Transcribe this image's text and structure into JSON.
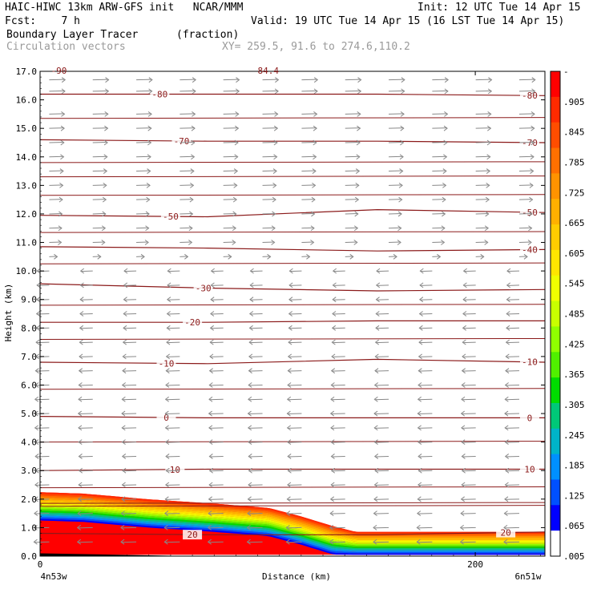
{
  "header": {
    "model_line": "HAIC-HIWC 13km ARW-GFS init   NCAR/MMM",
    "init": "Init: 12 UTC Tue 14 Apr 15",
    "fcst": "Fcst:    7 h",
    "valid": "Valid: 19 UTC Tue 14 Apr 15 (16 LST Tue 14 Apr 15)",
    "field1": "Boundary Layer Tracer",
    "field1_units": "(fraction)",
    "field2": "Circulation vectors",
    "xy": "XY= 259.5, 91.6 to 274.6,110.2"
  },
  "chart_data": {
    "type": "heatmap",
    "title": "Boundary Layer Tracer (fraction)",
    "subtitle": "Circulation vectors",
    "xlabel": "Distance (km)",
    "ylabel": "Height (km)",
    "xlim": [
      0,
      232
    ],
    "ylim": [
      0,
      17
    ],
    "x_ticks": [
      {
        "value": 0,
        "label": "0"
      },
      {
        "value": 200,
        "label": "200"
      }
    ],
    "x_end_labels": {
      "left": "4n53w",
      "right": "6n51w"
    },
    "y_ticks": [
      "0.0",
      "1.0",
      "2.0",
      "3.0",
      "4.0",
      "5.0",
      "6.0",
      "7.0",
      "8.0",
      "9.0",
      "10.0",
      "11.0",
      "12.0",
      "13.0",
      "14.0",
      "15.0",
      "16.0",
      "17.0"
    ],
    "terrain_height_km": [
      {
        "x": 0,
        "y": 2.3
      },
      {
        "x": 20,
        "y": 2.25
      },
      {
        "x": 50,
        "y": 2.05
      },
      {
        "x": 80,
        "y": 1.9
      },
      {
        "x": 105,
        "y": 1.75
      },
      {
        "x": 120,
        "y": 1.45
      },
      {
        "x": 135,
        "y": 1.1
      },
      {
        "x": 145,
        "y": 0.9
      },
      {
        "x": 160,
        "y": 0.9
      },
      {
        "x": 200,
        "y": 0.9
      },
      {
        "x": 232,
        "y": 0.9
      }
    ],
    "tracer_gradient_depth_km": 0.25,
    "colorbar": {
      "labels": [
        "-",
        ".905",
        ".845",
        ".785",
        ".725",
        ".665",
        ".605",
        ".545",
        ".485",
        ".425",
        ".365",
        ".305",
        ".245",
        ".185",
        ".125",
        ".065",
        ".005"
      ],
      "colors": [
        "#ff0000",
        "#ff2a00",
        "#ff4d00",
        "#ff7000",
        "#ff9300",
        "#ffb000",
        "#ffcc00",
        "#ffe600",
        "#f0ff00",
        "#c8ff00",
        "#90ff00",
        "#50f000",
        "#00dd00",
        "#00c878",
        "#00b4c8",
        "#0090ff",
        "#0050ff",
        "#0000ff",
        "#ffffff"
      ]
    },
    "contours": [
      {
        "label": "-80",
        "y": [
          16.2,
          16.2,
          16.2,
          16.15
        ],
        "label_at": [
          55,
          225
        ]
      },
      {
        "label": "-70",
        "y": [
          14.6,
          14.55,
          14.55,
          14.5
        ],
        "label_at": [
          65,
          225
        ]
      },
      {
        "label": "-50",
        "y": [
          11.95,
          11.9,
          12.15,
          12.05
        ],
        "label_at": [
          60,
          225
        ]
      },
      {
        "label": "-40",
        "y": [
          10.85,
          10.8,
          10.7,
          10.75
        ],
        "label_at": [
          null,
          225
        ]
      },
      {
        "label": "-30",
        "y": [
          9.55,
          9.4,
          9.3,
          9.35
        ],
        "label_at": [
          75,
          null
        ]
      },
      {
        "label": "-20",
        "y": [
          8.2,
          8.2,
          8.25,
          8.25
        ],
        "label_at": [
          70,
          null
        ]
      },
      {
        "label": "-10",
        "y": [
          6.8,
          6.75,
          6.9,
          6.8
        ],
        "label_at": [
          58,
          225
        ]
      },
      {
        "label": "0",
        "y": [
          4.9,
          4.85,
          4.85,
          4.85
        ],
        "label_at": [
          58,
          225
        ]
      },
      {
        "label": "10",
        "y": [
          3.0,
          3.05,
          3.05,
          3.05
        ],
        "label_at": [
          62,
          225
        ]
      },
      {
        "label": "20",
        "y": [
          0.8,
          0.75,
          0.75,
          0.85
        ],
        "label_at": [
          70,
          214
        ]
      }
    ],
    "unlabeled_contours_y": [
      15.35,
      13.8,
      13.3,
      12.65,
      11.35,
      10.25,
      8.8,
      7.6,
      5.85,
      4.0,
      2.4,
      1.85,
      1.75
    ],
    "vector_columns_x": [
      2,
      22,
      42,
      62,
      82,
      100,
      118,
      138,
      158,
      178,
      198,
      218
    ],
    "vector_rows_y": [
      16.7,
      16.3,
      15.5,
      15.0,
      14.5,
      14.0,
      13.5,
      13.0,
      12.5,
      12.0,
      11.5,
      11.0,
      10.5,
      10.0,
      9.5,
      9.0,
      8.5,
      8.0,
      7.5,
      7.0,
      6.5,
      6.0,
      5.5,
      5.0,
      4.5,
      4.0,
      3.5,
      3.0,
      2.5,
      2.0,
      1.5,
      1.0,
      0.5
    ],
    "vector_u_profile": [
      {
        "z": 17,
        "u": 1.0
      },
      {
        "z": 14,
        "u": 0.8
      },
      {
        "z": 11,
        "u": 0.5
      },
      {
        "z": 10,
        "u": -0.5
      },
      {
        "z": 8,
        "u": -0.6
      },
      {
        "z": 5,
        "u": -0.8
      },
      {
        "z": 3,
        "u": -0.7
      },
      {
        "z": 1,
        "u": -0.9
      }
    ],
    "top_partial_labels": [
      "-90",
      "84.4"
    ],
    "colors": {
      "contour": "#8b1a1a",
      "vector": "#888888",
      "frame": "#000000"
    }
  }
}
